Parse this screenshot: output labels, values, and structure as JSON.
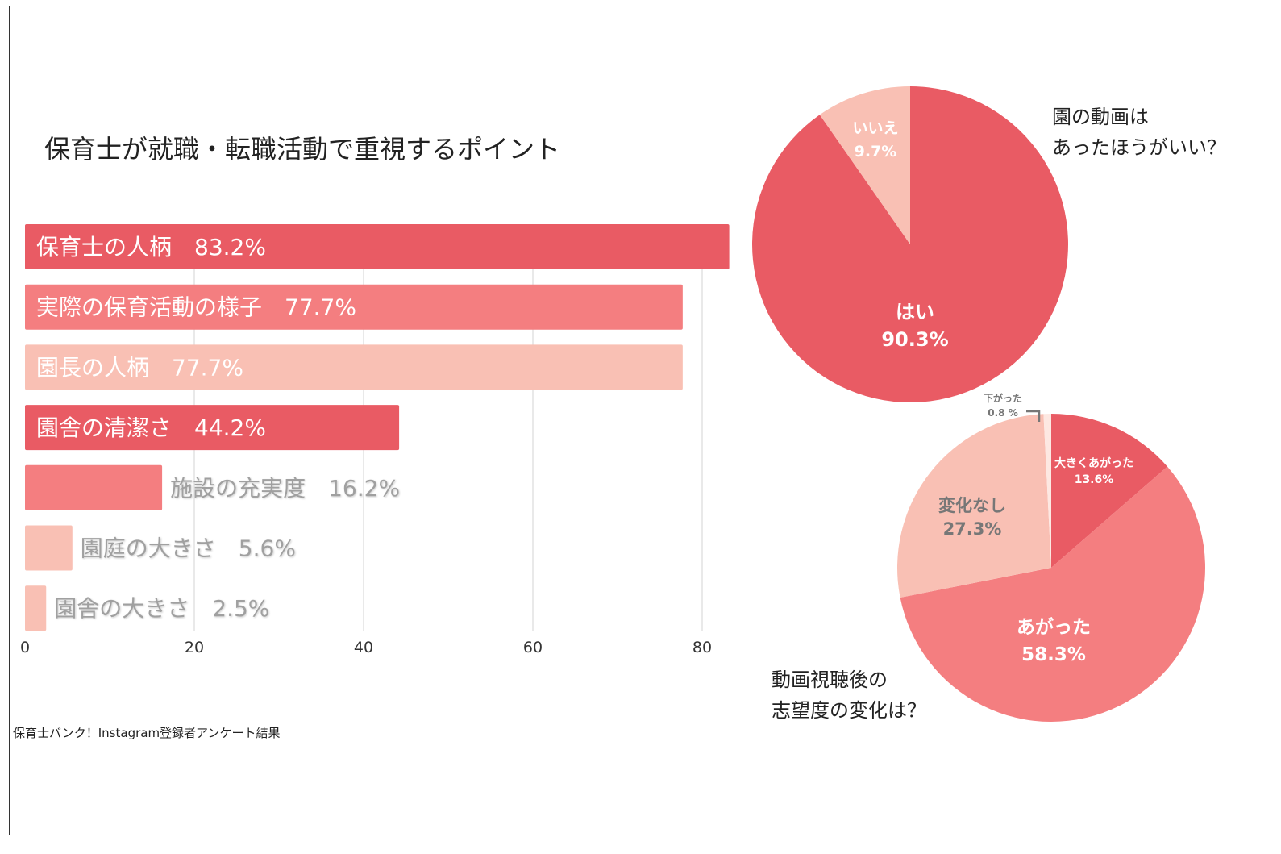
{
  "chart_data": [
    {
      "type": "bar",
      "orientation": "horizontal",
      "title": "保育士が就職・転職活動で重視するポイント",
      "categories": [
        "保育士の人柄",
        "実際の保育活動の様子",
        "園長の人柄",
        "園舎の清潔さ",
        "施設の充実度",
        "園庭の大きさ",
        "園舎の大きさ"
      ],
      "values": [
        83.2,
        77.7,
        77.7,
        44.2,
        16.2,
        5.6,
        2.5
      ],
      "value_labels": [
        "83.2%",
        "77.7%",
        "77.7%",
        "44.2%",
        "16.2%",
        "5.6%",
        "2.5%"
      ],
      "xlim": [
        0,
        85
      ],
      "xticks": [
        "0",
        "20",
        "40",
        "60",
        "80"
      ],
      "grid": true,
      "colors": [
        "#E95B64",
        "#F47E80",
        "#F9C0B4",
        "#E95B64",
        "#F47E80",
        "#F9C0B4",
        "#F9C0B4"
      ]
    },
    {
      "type": "pie",
      "title": "園の動画は\nあったほうがいい？",
      "labels": [
        "はい",
        "いいえ"
      ],
      "values": [
        90.3,
        9.7
      ],
      "value_labels": [
        "90.3%",
        "9.7%"
      ],
      "colors": [
        "#E95B64",
        "#F9C0B4"
      ]
    },
    {
      "type": "pie",
      "title": "動画視聴後の\n志望度の変化は？",
      "labels": [
        "大きくあがった",
        "あがった",
        "変化なし",
        "下がった"
      ],
      "values": [
        13.6,
        58.3,
        27.3,
        0.8
      ],
      "value_labels": [
        "13.6%",
        "58.3%",
        "27.3%",
        "0.8 %"
      ],
      "colors": [
        "#E95B64",
        "#F47E80",
        "#F9C0B4",
        "#FDE8E2"
      ]
    }
  ],
  "source": "保育士バンク！Instagram登録者アンケート結果"
}
